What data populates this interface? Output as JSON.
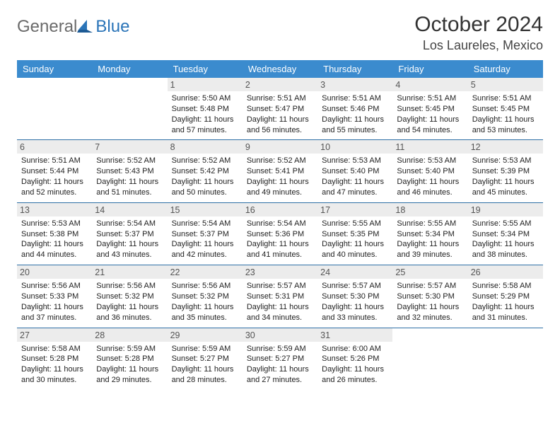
{
  "logo": {
    "text1": "General",
    "text2": "Blue"
  },
  "title": "October 2024",
  "location": "Los Laureles, Mexico",
  "header_bg": "#3b8bce",
  "row_border": "#2e6fa6",
  "daynum_bg": "#ececec",
  "weekdays": [
    "Sunday",
    "Monday",
    "Tuesday",
    "Wednesday",
    "Thursday",
    "Friday",
    "Saturday"
  ],
  "weeks": [
    [
      {
        "n": "",
        "sr": "",
        "ss": "",
        "dl": ""
      },
      {
        "n": "",
        "sr": "",
        "ss": "",
        "dl": ""
      },
      {
        "n": "1",
        "sr": "5:50 AM",
        "ss": "5:48 PM",
        "dl": "11 hours and 57 minutes."
      },
      {
        "n": "2",
        "sr": "5:51 AM",
        "ss": "5:47 PM",
        "dl": "11 hours and 56 minutes."
      },
      {
        "n": "3",
        "sr": "5:51 AM",
        "ss": "5:46 PM",
        "dl": "11 hours and 55 minutes."
      },
      {
        "n": "4",
        "sr": "5:51 AM",
        "ss": "5:45 PM",
        "dl": "11 hours and 54 minutes."
      },
      {
        "n": "5",
        "sr": "5:51 AM",
        "ss": "5:45 PM",
        "dl": "11 hours and 53 minutes."
      }
    ],
    [
      {
        "n": "6",
        "sr": "5:51 AM",
        "ss": "5:44 PM",
        "dl": "11 hours and 52 minutes."
      },
      {
        "n": "7",
        "sr": "5:52 AM",
        "ss": "5:43 PM",
        "dl": "11 hours and 51 minutes."
      },
      {
        "n": "8",
        "sr": "5:52 AM",
        "ss": "5:42 PM",
        "dl": "11 hours and 50 minutes."
      },
      {
        "n": "9",
        "sr": "5:52 AM",
        "ss": "5:41 PM",
        "dl": "11 hours and 49 minutes."
      },
      {
        "n": "10",
        "sr": "5:53 AM",
        "ss": "5:40 PM",
        "dl": "11 hours and 47 minutes."
      },
      {
        "n": "11",
        "sr": "5:53 AM",
        "ss": "5:40 PM",
        "dl": "11 hours and 46 minutes."
      },
      {
        "n": "12",
        "sr": "5:53 AM",
        "ss": "5:39 PM",
        "dl": "11 hours and 45 minutes."
      }
    ],
    [
      {
        "n": "13",
        "sr": "5:53 AM",
        "ss": "5:38 PM",
        "dl": "11 hours and 44 minutes."
      },
      {
        "n": "14",
        "sr": "5:54 AM",
        "ss": "5:37 PM",
        "dl": "11 hours and 43 minutes."
      },
      {
        "n": "15",
        "sr": "5:54 AM",
        "ss": "5:37 PM",
        "dl": "11 hours and 42 minutes."
      },
      {
        "n": "16",
        "sr": "5:54 AM",
        "ss": "5:36 PM",
        "dl": "11 hours and 41 minutes."
      },
      {
        "n": "17",
        "sr": "5:55 AM",
        "ss": "5:35 PM",
        "dl": "11 hours and 40 minutes."
      },
      {
        "n": "18",
        "sr": "5:55 AM",
        "ss": "5:34 PM",
        "dl": "11 hours and 39 minutes."
      },
      {
        "n": "19",
        "sr": "5:55 AM",
        "ss": "5:34 PM",
        "dl": "11 hours and 38 minutes."
      }
    ],
    [
      {
        "n": "20",
        "sr": "5:56 AM",
        "ss": "5:33 PM",
        "dl": "11 hours and 37 minutes."
      },
      {
        "n": "21",
        "sr": "5:56 AM",
        "ss": "5:32 PM",
        "dl": "11 hours and 36 minutes."
      },
      {
        "n": "22",
        "sr": "5:56 AM",
        "ss": "5:32 PM",
        "dl": "11 hours and 35 minutes."
      },
      {
        "n": "23",
        "sr": "5:57 AM",
        "ss": "5:31 PM",
        "dl": "11 hours and 34 minutes."
      },
      {
        "n": "24",
        "sr": "5:57 AM",
        "ss": "5:30 PM",
        "dl": "11 hours and 33 minutes."
      },
      {
        "n": "25",
        "sr": "5:57 AM",
        "ss": "5:30 PM",
        "dl": "11 hours and 32 minutes."
      },
      {
        "n": "26",
        "sr": "5:58 AM",
        "ss": "5:29 PM",
        "dl": "11 hours and 31 minutes."
      }
    ],
    [
      {
        "n": "27",
        "sr": "5:58 AM",
        "ss": "5:28 PM",
        "dl": "11 hours and 30 minutes."
      },
      {
        "n": "28",
        "sr": "5:59 AM",
        "ss": "5:28 PM",
        "dl": "11 hours and 29 minutes."
      },
      {
        "n": "29",
        "sr": "5:59 AM",
        "ss": "5:27 PM",
        "dl": "11 hours and 28 minutes."
      },
      {
        "n": "30",
        "sr": "5:59 AM",
        "ss": "5:27 PM",
        "dl": "11 hours and 27 minutes."
      },
      {
        "n": "31",
        "sr": "6:00 AM",
        "ss": "5:26 PM",
        "dl": "11 hours and 26 minutes."
      },
      {
        "n": "",
        "sr": "",
        "ss": "",
        "dl": ""
      },
      {
        "n": "",
        "sr": "",
        "ss": "",
        "dl": ""
      }
    ]
  ],
  "labels": {
    "sunrise": "Sunrise: ",
    "sunset": "Sunset: ",
    "daylight": "Daylight: "
  }
}
